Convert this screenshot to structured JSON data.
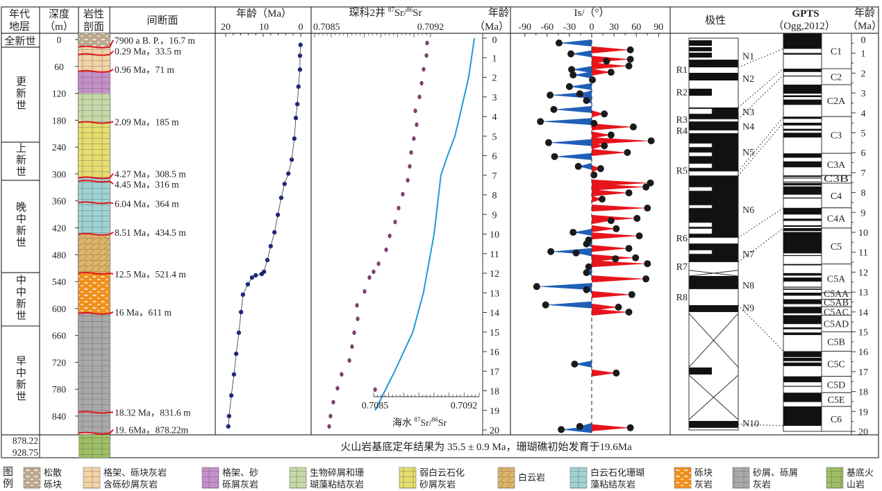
{
  "header": {
    "chronostrat": [
      "年代",
      "地层"
    ],
    "depth": [
      "深度",
      "（m）"
    ],
    "lithology": [
      "岩性",
      "剖面"
    ],
    "hiatus": "间断面",
    "age_plot": {
      "title": "年龄（Ma）",
      "ticks": [
        "20",
        "10",
        "0"
      ]
    },
    "sr": {
      "prefix": "琛科2井 ",
      "iso1": "87",
      "mid": "Sr/",
      "iso2": "86",
      "suffix": "Sr",
      "tick_min": "0.7085",
      "tick_max": "0.7092"
    },
    "age_axis": [
      "年龄",
      "（Ma）"
    ],
    "inclination": {
      "title": "Is/（°）",
      "ticks": [
        "-90",
        "-60",
        "-30",
        "0",
        "30",
        "60",
        "90"
      ]
    },
    "polarity": "极性",
    "gpts": [
      "GPTS",
      "（Ogg,2012）"
    ],
    "age_right": [
      "年龄",
      "（Ma）"
    ]
  },
  "epochs": [
    {
      "label": "全新世",
      "top": -14,
      "bottom": 17
    },
    {
      "label": "更新世",
      "top": 17,
      "bottom": 229
    },
    {
      "label": "上新世",
      "top": 229,
      "bottom": 314
    },
    {
      "label": "晚中新世",
      "top": 314,
      "bottom": 520
    },
    {
      "label": "中中新世",
      "top": 520,
      "bottom": 639
    },
    {
      "label": "早中新世",
      "top": 639,
      "bottom": 882
    }
  ],
  "depth_ticks": [
    "0",
    "60",
    "120",
    "180",
    "240",
    "300",
    "360",
    "420",
    "480",
    "540",
    "600",
    "660",
    "720",
    "780",
    "840"
  ],
  "basement_depths": [
    "878.22",
    "928.75"
  ],
  "lithology_units": [
    {
      "top": -14,
      "bottom": 16.7,
      "type": 0
    },
    {
      "top": 16.7,
      "bottom": 71,
      "type": 1
    },
    {
      "top": 71,
      "bottom": 120,
      "type": 2
    },
    {
      "top": 120,
      "bottom": 185,
      "type": 3
    },
    {
      "top": 185,
      "bottom": 308.5,
      "type": 4
    },
    {
      "top": 308.5,
      "bottom": 434.5,
      "type": 6
    },
    {
      "top": 434.5,
      "bottom": 521.4,
      "type": 5
    },
    {
      "top": 521.4,
      "bottom": 611,
      "type": 7
    },
    {
      "top": 611,
      "bottom": 878.22,
      "type": 8
    },
    {
      "top": 878.22,
      "bottom": 928.75,
      "type": 9
    }
  ],
  "hiatuses": [
    {
      "depth": 16.7,
      "label": "7900 a B. P.，16.7 m"
    },
    {
      "depth": 33.5,
      "label": "0.29 Ma，33.5 m"
    },
    {
      "depth": 71,
      "label": "0.96 Ma，71 m"
    },
    {
      "depth": 185,
      "label": "2.09 Ma，185 m"
    },
    {
      "depth": 308.5,
      "label": "4.27 Ma，308.5 m"
    },
    {
      "depth": 316,
      "label": "4.45 Ma，316 m"
    },
    {
      "depth": 364,
      "label": "6.04 Ma，364 m"
    },
    {
      "depth": 434.5,
      "label": "8.51 Ma，434.5 m"
    },
    {
      "depth": 521.4,
      "label": "12.5 Ma，521.4 m"
    },
    {
      "depth": 611,
      "label": "16 Ma，611 m"
    },
    {
      "depth": 831.6,
      "label": "18.32 Ma，831.6 m"
    },
    {
      "depth": 878.22,
      "label": "19. 6Ma，878.22m"
    }
  ],
  "chart_data": [
    {
      "type": "line",
      "title": "年龄（Ma）",
      "xlim": [
        20,
        0
      ],
      "y_units": "depth m",
      "points_age_depth": [
        [
          0.05,
          12
        ],
        [
          0.2,
          36
        ],
        [
          0.2,
          67
        ],
        [
          0.6,
          105
        ],
        [
          0.9,
          144
        ],
        [
          1.3,
          175
        ],
        [
          1.7,
          221
        ],
        [
          2.4,
          268
        ],
        [
          3.3,
          299
        ],
        [
          4.3,
          322
        ],
        [
          5.2,
          353
        ],
        [
          6.1,
          391
        ],
        [
          7.0,
          430
        ],
        [
          8.0,
          461
        ],
        [
          8.9,
          492
        ],
        [
          9.8,
          518
        ],
        [
          10.4,
          523
        ],
        [
          12.0,
          526
        ],
        [
          13.0,
          531
        ],
        [
          14.1,
          546
        ],
        [
          15.4,
          569
        ],
        [
          15.9,
          608
        ],
        [
          16.5,
          654
        ],
        [
          17.2,
          701
        ],
        [
          17.8,
          747
        ],
        [
          18.5,
          794
        ],
        [
          19.1,
          840
        ],
        [
          19.3,
          863
        ]
      ],
      "marker_color": "#1f2a7a"
    },
    {
      "type": "scatter",
      "xlim": [
        0.7085,
        0.7092
      ],
      "points_depth_sr": [
        [
          7.7,
          0.709179
        ],
        [
          35.6,
          0.709175
        ],
        [
          66.5,
          0.709158
        ],
        [
          97.5,
          0.709146
        ],
        [
          128,
          0.709133
        ],
        [
          159,
          0.709108
        ],
        [
          190,
          0.709116
        ],
        [
          221,
          0.709099
        ],
        [
          252,
          0.709083
        ],
        [
          283,
          0.709074
        ],
        [
          314,
          0.709062
        ],
        [
          345,
          0.709032
        ],
        [
          376,
          0.709007
        ],
        [
          407,
          0.708986
        ],
        [
          438,
          0.708953
        ],
        [
          469,
          0.708932
        ],
        [
          500,
          0.708886
        ],
        [
          518,
          0.708856
        ],
        [
          531,
          0.708831
        ],
        [
          562,
          0.708802
        ],
        [
          593,
          0.708756
        ],
        [
          623,
          0.70876
        ],
        [
          654,
          0.708739
        ],
        [
          685,
          0.708726
        ],
        [
          716,
          0.70871
        ],
        [
          747,
          0.708663
        ],
        [
          778,
          0.708638
        ],
        [
          781,
          0.708865
        ],
        [
          809,
          0.708613
        ],
        [
          840,
          0.708596
        ],
        [
          863,
          0.708588
        ]
      ],
      "marker_color": "#8a3d7a",
      "seawater_curve": {
        "xlabel": "海水 ",
        "iso1": "87",
        "mid": "Sr/",
        "iso2": "86",
        "suffix": "Sr",
        "xlim": [
          0.7085,
          0.7092
        ],
        "tick_min": "0.7085",
        "tick_max": "0.7092",
        "age_sr": [
          [
            0,
            0.709168
          ],
          [
            2,
            0.70913
          ],
          [
            4,
            0.70907
          ],
          [
            5,
            0.709039
          ],
          [
            6,
            0.70899
          ],
          [
            7,
            0.708946
          ],
          [
            10,
            0.708901
          ],
          [
            13,
            0.70883
          ],
          [
            15,
            0.70876
          ],
          [
            17,
            0.70864
          ],
          [
            19,
            0.70851
          ]
        ],
        "color": "#1f9ad6"
      },
      "age_ticks": [
        "0",
        "1",
        "2",
        "3",
        "4",
        "5",
        "6",
        "7",
        "8",
        "9",
        "10",
        "11",
        "12",
        "13",
        "14",
        "15",
        "16",
        "17",
        "18",
        "19",
        "20"
      ]
    },
    {
      "type": "area",
      "title": "Is/（°）",
      "xlim": [
        -90,
        90
      ],
      "points_depth_inc": [
        [
          7.7,
          -44
        ],
        [
          23,
          52
        ],
        [
          32,
          -28
        ],
        [
          44,
          52
        ],
        [
          48,
          20
        ],
        [
          59,
          50
        ],
        [
          67,
          -27
        ],
        [
          73,
          26
        ],
        [
          79,
          -25
        ],
        [
          90,
          1
        ],
        [
          105,
          -30
        ],
        [
          121,
          -16
        ],
        [
          124,
          -56
        ],
        [
          136,
          -7
        ],
        [
          156,
          -51
        ],
        [
          166,
          17
        ],
        [
          183,
          -69
        ],
        [
          187,
          3
        ],
        [
          195,
          56
        ],
        [
          213,
          26
        ],
        [
          226,
          80
        ],
        [
          230,
          -58
        ],
        [
          237,
          17
        ],
        [
          252,
          48
        ],
        [
          261,
          -50
        ],
        [
          283,
          -18
        ],
        [
          288,
          12
        ],
        [
          302,
          3
        ],
        [
          320,
          79
        ],
        [
          329,
          73
        ],
        [
          342,
          50
        ],
        [
          356,
          14
        ],
        [
          376,
          75
        ],
        [
          399,
          61
        ],
        [
          404,
          26
        ],
        [
          422,
          33
        ],
        [
          430,
          -25
        ],
        [
          438,
          64
        ],
        [
          447,
          -4
        ],
        [
          456,
          -7
        ],
        [
          466,
          50
        ],
        [
          473,
          -55
        ],
        [
          476,
          -21
        ],
        [
          487,
          59
        ],
        [
          489,
          32
        ],
        [
          500,
          75
        ],
        [
          507,
          -4
        ],
        [
          520,
          -7
        ],
        [
          534,
          73
        ],
        [
          551,
          -74
        ],
        [
          558,
          -7
        ],
        [
          569,
          54
        ],
        [
          592,
          -62
        ],
        [
          597,
          36
        ],
        [
          608,
          50
        ],
        [
          724,
          -23
        ],
        [
          744,
          33
        ],
        [
          863,
          -16
        ],
        [
          866,
          52
        ],
        [
          870,
          -41
        ]
      ],
      "positive_color": "#e8141c",
      "negative_color": "#1f5fb8"
    }
  ],
  "polarity": {
    "bands": [
      [
        0.11,
        0.39,
        "N",
        "half"
      ],
      [
        0.46,
        0.67,
        "N",
        "half"
      ],
      [
        0.74,
        0.99,
        "N",
        "half"
      ],
      [
        1.1,
        1.49,
        "N",
        "full"
      ],
      [
        1.77,
        2.16,
        "N",
        "full"
      ],
      [
        2.58,
        2.94,
        "N",
        "half"
      ],
      [
        3.54,
        11.43,
        "N",
        "full"
      ],
      [
        3.61,
        3.86,
        "R",
        "half"
      ],
      [
        4.14,
        4.25,
        "R",
        "full"
      ],
      [
        4.71,
        4.85,
        "R",
        "full"
      ],
      [
        5.38,
        5.56,
        "R",
        "half"
      ],
      [
        5.84,
        6.02,
        "R",
        "half"
      ],
      [
        6.41,
        6.62,
        "R",
        "half"
      ],
      [
        6.8,
        7.01,
        "R",
        "full"
      ],
      [
        7.61,
        7.79,
        "R",
        "half"
      ],
      [
        8.53,
        8.67,
        "R",
        "half"
      ],
      [
        9.42,
        9.63,
        "R",
        "half"
      ],
      [
        9.73,
        9.98,
        "R",
        "half"
      ],
      [
        10.19,
        10.48,
        "R",
        "full"
      ],
      [
        10.83,
        11.01,
        "R",
        "half"
      ],
      [
        12.14,
        12.81,
        "N",
        "full"
      ],
      [
        13.63,
        13.98,
        "N",
        "full"
      ],
      [
        16.81,
        17.17,
        "N",
        "half"
      ],
      [
        19.54,
        19.89,
        "N",
        "full"
      ]
    ],
    "no_data": [
      [
        11.85,
        12.14
      ],
      [
        14.05,
        16.8
      ],
      [
        17.2,
        19.47
      ]
    ],
    "reversed_labels": [
      {
        "label": "R1",
        "age": 1.6
      },
      {
        "label": "R2",
        "age": 2.75
      },
      {
        "label": "R3",
        "age": 4.15
      },
      {
        "label": "R4",
        "age": 4.7
      },
      {
        "label": "R5",
        "age": 6.75
      },
      {
        "label": "R6",
        "age": 10.2
      },
      {
        "label": "R7",
        "age": 11.65
      },
      {
        "label": "R8",
        "age": 13.2
      }
    ],
    "normal_labels": [
      {
        "label": "N1",
        "age": 0.9
      },
      {
        "label": "N2",
        "age": 2.05
      },
      {
        "label": "N3",
        "age": 3.75
      },
      {
        "label": "N4",
        "age": 4.5
      },
      {
        "label": "N5",
        "age": 5.8
      },
      {
        "label": "N6",
        "age": 8.75
      },
      {
        "label": "N7",
        "age": 11.0
      },
      {
        "label": "N8",
        "age": 12.6
      },
      {
        "label": "N9",
        "age": 13.75
      },
      {
        "label": "N10",
        "age": 19.65
      }
    ],
    "correlations": [
      [
        1.49,
        0.78
      ],
      [
        3.54,
        1.78
      ],
      [
        4.14,
        2.1
      ],
      [
        6.8,
        4.19
      ],
      [
        7.01,
        4.49
      ],
      [
        10.19,
        8.77
      ],
      [
        11.43,
        9.79
      ],
      [
        13.63,
        15.97
      ],
      [
        19.7,
        19.72
      ]
    ]
  },
  "gpts": {
    "normal_intervals": [
      [
        0,
        0.781
      ],
      [
        0.988,
        1.072
      ],
      [
        1.778,
        1.945
      ],
      [
        2.128,
        2.148
      ],
      [
        2.581,
        3.032
      ],
      [
        3.116,
        3.207
      ],
      [
        3.33,
        3.596
      ],
      [
        4.187,
        4.3
      ],
      [
        4.493,
        4.631
      ],
      [
        4.799,
        4.896
      ],
      [
        4.997,
        5.235
      ],
      [
        6.033,
        6.252
      ],
      [
        6.436,
        6.733
      ],
      [
        7.14,
        7.212
      ],
      [
        7.251,
        7.285
      ],
      [
        7.454,
        7.489
      ],
      [
        7.528,
        7.642
      ],
      [
        7.695,
        8.108
      ],
      [
        8.254,
        8.3
      ],
      [
        8.771,
        9.105
      ],
      [
        9.311,
        9.426
      ],
      [
        9.647,
        9.721
      ],
      [
        9.786,
        9.937
      ],
      [
        9.984,
        11.056
      ],
      [
        11.146,
        11.188
      ],
      [
        11.592,
        11.657
      ],
      [
        12.049,
        12.174
      ],
      [
        12.272,
        12.474
      ],
      [
        12.735,
        12.77
      ],
      [
        12.829,
        12.887
      ],
      [
        13.032,
        13.183
      ],
      [
        13.363,
        13.608
      ],
      [
        13.739,
        14.07
      ],
      [
        14.163,
        14.609
      ],
      [
        14.775,
        14.87
      ],
      [
        15.032,
        15.16
      ],
      [
        15.974,
        16.268
      ],
      [
        16.303,
        16.472
      ],
      [
        16.543,
        16.721
      ],
      [
        17.235,
        17.533
      ],
      [
        17.717,
        17.74
      ],
      [
        18.056,
        18.524
      ],
      [
        18.748,
        19.722
      ]
    ],
    "chrons": [
      {
        "label": "C1",
        "top": 0,
        "bottom": 1.778
      },
      {
        "label": "C2",
        "top": 1.778,
        "bottom": 2.581
      },
      {
        "label": "C2A",
        "top": 2.581,
        "bottom": 4.187
      },
      {
        "label": "C3",
        "top": 4.187,
        "bottom": 6.033
      },
      {
        "label": "C3A",
        "top": 6.033,
        "bottom": 7.14
      },
      {
        "label": "C3B",
        "top": 7.14,
        "bottom": 7.528
      },
      {
        "label": "C4",
        "top": 7.528,
        "bottom": 8.771
      },
      {
        "label": "C4A",
        "top": 8.771,
        "bottom": 9.786
      },
      {
        "label": "C5",
        "top": 9.786,
        "bottom": 11.592
      },
      {
        "label": "C5A",
        "top": 11.592,
        "bottom": 13.032
      },
      {
        "label": "C5AA",
        "top": 13.032,
        "bottom": 13.363
      },
      {
        "label": "C5AB",
        "top": 13.363,
        "bottom": 13.739
      },
      {
        "label": "C5AC",
        "top": 13.739,
        "bottom": 14.163
      },
      {
        "label": "C5AD",
        "top": 14.163,
        "bottom": 15.0
      },
      {
        "label": "C5B",
        "top": 15.0,
        "bottom": 15.974
      },
      {
        "label": "C5C",
        "top": 15.974,
        "bottom": 17.235
      },
      {
        "label": "C5D",
        "top": 17.235,
        "bottom": 18.056
      },
      {
        "label": "C5E",
        "top": 18.056,
        "bottom": 18.748
      },
      {
        "label": "C6",
        "top": 18.748,
        "bottom": 20.0
      }
    ],
    "age_ticks": [
      "0",
      "1",
      "2",
      "3",
      "4",
      "5",
      "6",
      "7",
      "8",
      "9",
      "10",
      "11",
      "12",
      "13",
      "14",
      "15",
      "16",
      "17",
      "18",
      "19",
      "20"
    ]
  },
  "basement_note": "火山岩基底定年结果为 35.5 ± 0.9 Ma，珊瑚礁初始发育于19.6Ma",
  "legend": {
    "title": "图例",
    "items": [
      {
        "lines": [
          "松散",
          "砾块"
        ],
        "color": "#b9a88b"
      },
      {
        "lines": [
          "格架、砾块灰岩",
          "含砾砂屑灰岩"
        ],
        "color": "#f3d3a6"
      },
      {
        "lines": [
          "格架、砂",
          "砾屑灰岩"
        ],
        "color": "#c58fca"
      },
      {
        "lines": [
          "生物碎屑和珊",
          "瑚藻粘结灰岩"
        ],
        "color": "#c6daa8"
      },
      {
        "lines": [
          "弱白云石化",
          "砂屑灰岩"
        ],
        "color": "#e6de6e"
      },
      {
        "lines": [
          "白云岩"
        ],
        "color": "#dcb46c"
      },
      {
        "lines": [
          "白云石化珊瑚",
          "藻粘结灰岩"
        ],
        "color": "#9fd3d3"
      },
      {
        "lines": [
          "砾块",
          "灰岩"
        ],
        "color": "#f08f1a"
      },
      {
        "lines": [
          "砂屑、砾屑",
          "灰岩"
        ],
        "color": "#a9a9a9"
      },
      {
        "lines": [
          "基底火",
          "山岩"
        ],
        "color": "#9fbf66"
      }
    ]
  },
  "colors": {
    "hiatus_line": "#e0141c",
    "frame": "#333333"
  }
}
